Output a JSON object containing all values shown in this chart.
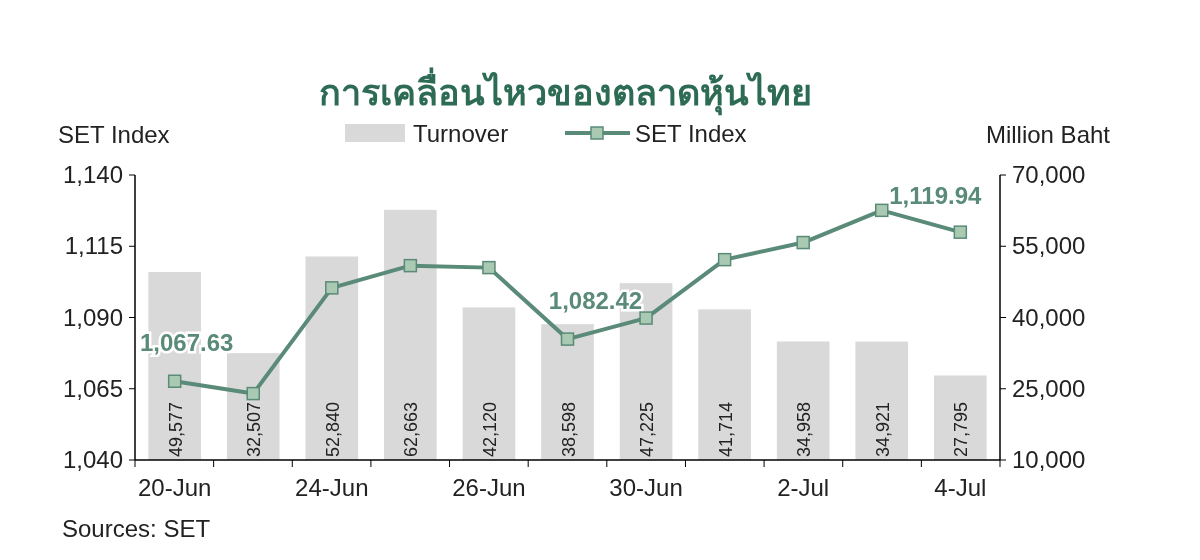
{
  "chart_data": {
    "type": "bar",
    "title": "การเคลื่อนไหวของตลาดหุ้นไทย",
    "ylabel": "SET Index",
    "y2label": "Million Baht",
    "categories": [
      "20-Jun",
      null,
      "24-Jun",
      null,
      "26-Jun",
      null,
      "30-Jun",
      null,
      "2-Jul",
      null,
      "4-Jul"
    ],
    "series": [
      {
        "name": "Turnover",
        "axis": "y2",
        "color": "#d9d9d9",
        "values": [
          49577,
          32507,
          52840,
          62663,
          42120,
          38598,
          47225,
          41714,
          34958,
          34921,
          27795
        ],
        "value_labels": [
          "49,577",
          "32,507",
          "52,840",
          "62,663",
          "42,120",
          "38,598",
          "47,225",
          "41,714",
          "34,958",
          "34,921",
          "27,795"
        ]
      },
      {
        "name": "SET Index",
        "type": "line",
        "color": "#5a8a78",
        "marker": "square",
        "values": [
          1067.63,
          1063.3,
          1100.4,
          1108.2,
          1107.5,
          1082.42,
          1089.8,
          1110.3,
          1116.3,
          1127.6,
          1119.94
        ],
        "value_labels": [
          "1,067.63",
          null,
          null,
          null,
          null,
          "1,082.42",
          null,
          null,
          null,
          null,
          "1,119.94"
        ]
      }
    ],
    "ylim": [
      1040,
      1140
    ],
    "yticks": [
      {
        "value": 1040,
        "label": "1,040"
      },
      {
        "value": 1065,
        "label": "1,065"
      },
      {
        "value": 1090,
        "label": "1,090"
      },
      {
        "value": 1115,
        "label": "1,115"
      },
      {
        "value": 1140,
        "label": "1,140"
      }
    ],
    "y2lim": [
      10000,
      70000
    ],
    "y2ticks": [
      {
        "value": 10000,
        "label": "10,000"
      },
      {
        "value": 25000,
        "label": "25,000"
      },
      {
        "value": 40000,
        "label": "40,000"
      },
      {
        "value": 55000,
        "label": "55,000"
      },
      {
        "value": 70000,
        "label": "70,000"
      }
    ],
    "legend": "top",
    "grid": false,
    "annotations": [
      "Sources: SET"
    ]
  }
}
